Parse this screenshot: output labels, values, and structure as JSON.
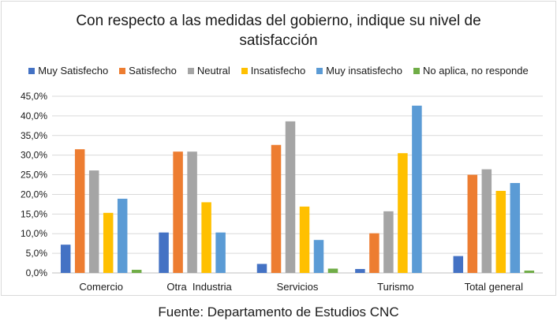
{
  "chart_data": {
    "type": "bar",
    "title_line1": "Con respecto a las medidas del gobierno, indique su nivel de",
    "title_line2": "satisfacción",
    "categories": [
      "Comercio",
      "Otra  Industria",
      "Servicios",
      "Turismo",
      "Total general"
    ],
    "ylim": [
      0,
      45
    ],
    "yticks": [
      "0,0%",
      "5,0%",
      "10,0%",
      "15,0%",
      "20,0%",
      "25,0%",
      "30,0%",
      "35,0%",
      "40,0%",
      "45,0%"
    ],
    "ytick_values": [
      0,
      5,
      10,
      15,
      20,
      25,
      30,
      35,
      40,
      45
    ],
    "grid": true,
    "legend_position": "top",
    "series": [
      {
        "name": "Muy Satisfecho",
        "color": "#4472c4",
        "values": [
          7.2,
          10.3,
          2.3,
          1.0,
          4.3
        ]
      },
      {
        "name": "Satisfecho",
        "color": "#ed7d31",
        "values": [
          31.5,
          30.9,
          32.6,
          10.1,
          25.0
        ]
      },
      {
        "name": "Neutral",
        "color": "#a5a5a5",
        "values": [
          26.1,
          30.9,
          38.6,
          15.7,
          26.4
        ]
      },
      {
        "name": "Insatisfecho",
        "color": "#ffc000",
        "values": [
          15.3,
          18.0,
          16.9,
          30.5,
          20.9
        ]
      },
      {
        "name": "Muy insatisfecho",
        "color": "#5b9bd5",
        "values": [
          18.9,
          10.3,
          8.4,
          42.6,
          22.9
        ]
      },
      {
        "name": "No aplica, no responde",
        "color": "#70ad47",
        "values": [
          0.8,
          0.0,
          1.1,
          0.0,
          0.6
        ]
      }
    ]
  },
  "source": "Fuente: Departamento de Estudios CNC"
}
